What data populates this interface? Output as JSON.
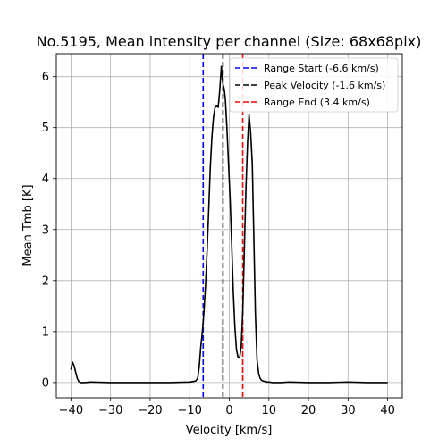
{
  "chart_data": {
    "type": "line",
    "title": "No.5195, Mean intensity per channel (Size: 68x68pix)",
    "xlabel": "Velocity [km/s]",
    "ylabel": "Mean Tmb [K]",
    "xlim": [
      -43.7,
      43.7
    ],
    "ylim": [
      -0.3,
      6.45
    ],
    "xticks": [
      -40,
      -30,
      -20,
      -10,
      0,
      10,
      20,
      30,
      40
    ],
    "yticks": [
      0,
      1,
      2,
      3,
      4,
      5,
      6
    ],
    "grid": true,
    "legend_position": "top-right",
    "series": [
      {
        "color": "#000000",
        "x": [
          -40.0,
          -39.6,
          -39.2,
          -38.8,
          -38.4,
          -38.0,
          -37.5,
          -36.5,
          -35.0,
          -30.0,
          -25.0,
          -20.0,
          -15.0,
          -10.0,
          -8.5,
          -8.0,
          -7.6,
          -7.2,
          -6.8,
          -6.4,
          -6.0,
          -5.6,
          -5.2,
          -4.8,
          -4.4,
          -4.0,
          -3.6,
          -3.2,
          -2.8,
          -2.4,
          -2.0,
          -1.8,
          -1.6,
          -1.4,
          -1.2,
          -1.0,
          -0.6,
          -0.2,
          0.2,
          0.6,
          1.0,
          1.4,
          1.8,
          2.2,
          2.6,
          3.0,
          3.4,
          3.8,
          4.2,
          4.6,
          5.0,
          5.4,
          5.8,
          6.2,
          6.6,
          7.0,
          7.4,
          7.8,
          8.2,
          8.6,
          9.0,
          9.5,
          10.0,
          11.0,
          13.0,
          15.0,
          20.0,
          25.0,
          30.0,
          35.0,
          40.0
        ],
        "values": [
          0.25,
          0.4,
          0.33,
          0.2,
          0.08,
          0.02,
          0.0,
          0.0,
          0.01,
          0.0,
          0.0,
          0.0,
          0.0,
          0.01,
          0.03,
          0.08,
          0.3,
          0.7,
          1.0,
          1.4,
          1.9,
          2.6,
          3.4,
          4.2,
          4.8,
          5.2,
          5.4,
          5.42,
          5.4,
          5.75,
          6.2,
          6.0,
          5.85,
          5.8,
          5.7,
          5.55,
          5.0,
          4.3,
          3.6,
          2.7,
          1.8,
          1.1,
          0.65,
          0.5,
          0.48,
          0.7,
          1.4,
          2.6,
          3.8,
          4.7,
          5.25,
          4.9,
          4.3,
          2.8,
          1.35,
          0.45,
          0.18,
          0.08,
          0.04,
          0.03,
          0.02,
          0.01,
          0.01,
          0.0,
          0.0,
          0.01,
          0.0,
          0.0,
          0.01,
          0.0,
          0.0
        ]
      }
    ],
    "vlines": [
      {
        "label": "Range Start (-6.6 km/s)",
        "x": -6.6,
        "color": "#0000ff"
      },
      {
        "label": "Peak Velocity (-1.6 km/s)",
        "x": -1.6,
        "color": "#000000"
      },
      {
        "label": "Range End (3.4 km/s)",
        "x": 3.4,
        "color": "#ff0000"
      }
    ]
  }
}
